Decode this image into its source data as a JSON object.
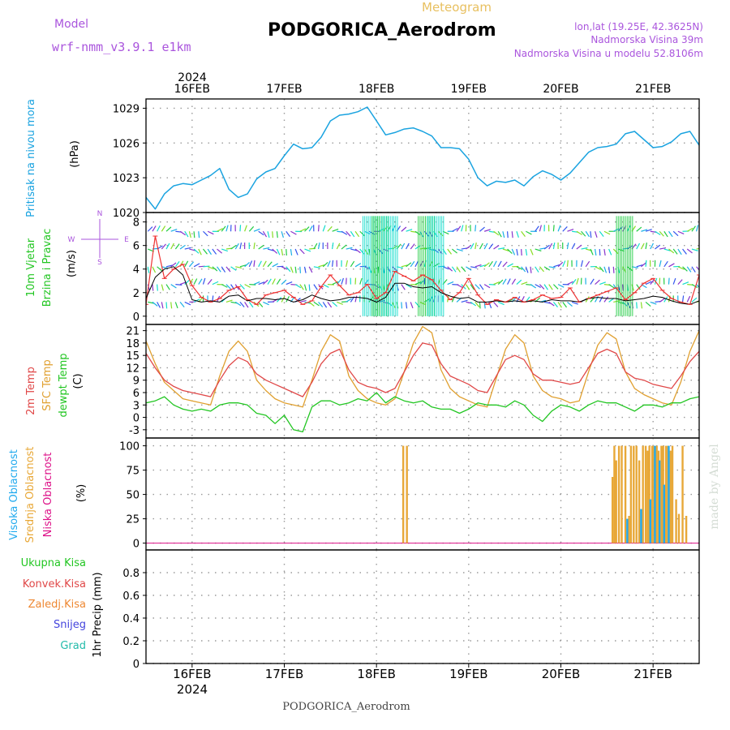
{
  "header": {
    "meteogram_label": "Meteogram",
    "model_label": "Model",
    "model_value": "wrf-nmm_v3.9.1  e1km",
    "station": "PODGORICA_Aerodrom",
    "lonlat": "lon,lat (19.25E, 42.3625N)",
    "elevation": "Nadmorska Visina 39m",
    "model_elevation": "Nadmorska Visina u modelu 52.8106m",
    "footer_station": "PODGORICA_Aerodrom",
    "watermark": "made by Angel"
  },
  "colors": {
    "pressure": "#1aa3e0",
    "temp2m": "#e04848",
    "sfc": "#e0a030",
    "dew": "#22c622",
    "cloud_high": "#22aaee",
    "cloud_mid": "#e8a838",
    "cloud_low": "#dd1188",
    "model": "#aa55dd",
    "meteogram_title": "#e8c060"
  },
  "time_axis": {
    "top_year": "2024",
    "bottom_year": "2024",
    "days": [
      {
        "label": "16FEB",
        "t": 0.5
      },
      {
        "label": "17FEB",
        "t": 1.5
      },
      {
        "label": "18FEB",
        "t": 2.5
      },
      {
        "label": "19FEB",
        "t": 3.5
      },
      {
        "label": "20FEB",
        "t": 4.5
      },
      {
        "label": "21FEB",
        "t": 5.5
      }
    ],
    "t_range": [
      0,
      6
    ]
  },
  "chart_data": [
    {
      "id": "pressure",
      "type": "line",
      "labels": [
        "Pritisak na nivou mora"
      ],
      "ylabel": "(hPa)",
      "y_ticks": [
        1020,
        1023,
        1026,
        1029
      ],
      "ylim": [
        1020,
        1029.8
      ],
      "series": [
        {
          "name": "Pritisak na nivou mora",
          "x": [
            0.0,
            0.1,
            0.2,
            0.3,
            0.4,
            0.5,
            0.6,
            0.7,
            0.8,
            0.9,
            1.0,
            1.1,
            1.2,
            1.3,
            1.4,
            1.5,
            1.6,
            1.7,
            1.8,
            1.9,
            2.0,
            2.1,
            2.2,
            2.3,
            2.4,
            2.5,
            2.6,
            2.7,
            2.8,
            2.9,
            3.0,
            3.1,
            3.2,
            3.3,
            3.4,
            3.5,
            3.6,
            3.7,
            3.8,
            3.9,
            4.0,
            4.1,
            4.2,
            4.3,
            4.4,
            4.5,
            4.6,
            4.7,
            4.8,
            4.9,
            5.0,
            5.1,
            5.2,
            5.3,
            5.4,
            5.5,
            5.6,
            5.7,
            5.8,
            5.9,
            6.0
          ],
          "values": [
            1021.3,
            1020.3,
            1021.6,
            1022.3,
            1022.5,
            1022.4,
            1022.8,
            1023.2,
            1023.8,
            1022.0,
            1021.3,
            1021.6,
            1022.9,
            1023.5,
            1023.8,
            1024.9,
            1025.9,
            1025.5,
            1025.6,
            1026.5,
            1027.9,
            1028.4,
            1028.5,
            1028.7,
            1029.1,
            1027.9,
            1026.7,
            1026.9,
            1027.2,
            1027.3,
            1027.0,
            1026.6,
            1025.6,
            1025.6,
            1025.5,
            1024.6,
            1023.0,
            1022.3,
            1022.7,
            1022.6,
            1022.8,
            1022.3,
            1023.1,
            1023.6,
            1023.3,
            1022.8,
            1023.4,
            1024.3,
            1025.2,
            1025.6,
            1025.7,
            1025.9,
            1026.8,
            1027.0,
            1026.3,
            1025.6,
            1025.7,
            1026.1,
            1026.8,
            1027.0,
            1025.8
          ]
        }
      ]
    },
    {
      "id": "wind",
      "type": "line",
      "labels": [
        "10m Vjetar",
        "Brzina i Pravac"
      ],
      "ylabel": "(m/s)",
      "y_ticks": [
        0,
        2,
        4,
        6,
        8
      ],
      "ylim": [
        -0.7,
        8.8
      ],
      "compass": {
        "n": "N",
        "s": "S",
        "w": "W",
        "e": "E"
      },
      "series": [
        {
          "name": "Brzina",
          "x": [
            0.0,
            0.1,
            0.2,
            0.3,
            0.4,
            0.5,
            0.6,
            0.7,
            0.8,
            0.9,
            1.0,
            1.1,
            1.2,
            1.3,
            1.4,
            1.5,
            1.6,
            1.7,
            1.8,
            1.9,
            2.0,
            2.1,
            2.2,
            2.3,
            2.4,
            2.5,
            2.6,
            2.7,
            2.8,
            2.9,
            3.0,
            3.1,
            3.2,
            3.3,
            3.4,
            3.5,
            3.6,
            3.7,
            3.8,
            3.9,
            4.0,
            4.1,
            4.2,
            4.3,
            4.4,
            4.5,
            4.6,
            4.7,
            4.8,
            4.9,
            5.0,
            5.1,
            5.2,
            5.3,
            5.4,
            5.5,
            5.6,
            5.7,
            5.8,
            5.9,
            6.0
          ],
          "values": [
            1.0,
            6.8,
            3.2,
            4.0,
            4.4,
            2.6,
            1.6,
            1.2,
            1.5,
            2.2,
            2.5,
            1.4,
            1.0,
            1.8,
            2.0,
            2.2,
            1.6,
            1.0,
            1.3,
            2.5,
            3.5,
            2.6,
            1.8,
            2.0,
            2.7,
            1.5,
            2.0,
            3.8,
            3.4,
            3.0,
            3.5,
            3.1,
            2.2,
            1.4,
            2.0,
            3.2,
            1.8,
            1.0,
            1.4,
            1.2,
            1.6,
            1.2,
            1.4,
            1.8,
            1.5,
            1.6,
            2.4,
            1.2,
            1.5,
            1.8,
            2.1,
            2.4,
            1.4,
            2.0,
            2.8,
            3.2,
            2.2,
            1.5,
            1.2,
            1.0,
            3.5
          ]
        },
        {
          "name": "Brzina 2",
          "x": [
            0.0,
            0.1,
            0.2,
            0.3,
            0.4,
            0.5,
            0.6,
            0.7,
            0.8,
            0.9,
            1.0,
            1.1,
            1.2,
            1.3,
            1.4,
            1.5,
            1.6,
            1.7,
            1.8,
            1.9,
            2.0,
            2.1,
            2.2,
            2.3,
            2.4,
            2.5,
            2.6,
            2.7,
            2.8,
            2.9,
            3.0,
            3.1,
            3.2,
            3.3,
            3.4,
            3.5,
            3.6,
            3.7,
            3.8,
            3.9,
            4.0,
            4.1,
            4.2,
            4.3,
            4.4,
            4.5,
            4.6,
            4.7,
            4.8,
            4.9,
            5.0,
            5.1,
            5.2,
            5.3,
            5.4,
            5.5,
            5.6,
            5.7,
            5.8,
            5.9,
            6.0
          ],
          "values": [
            1.5,
            3.3,
            4.0,
            4.2,
            3.5,
            1.4,
            1.2,
            1.3,
            1.2,
            1.7,
            1.8,
            1.3,
            1.5,
            1.5,
            1.4,
            1.5,
            1.2,
            1.4,
            1.8,
            1.5,
            1.3,
            1.4,
            1.6,
            1.6,
            1.5,
            1.2,
            1.6,
            2.8,
            2.8,
            2.5,
            2.4,
            2.5,
            2.0,
            1.7,
            1.5,
            1.6,
            1.2,
            1.2,
            1.3,
            1.2,
            1.3,
            1.2,
            1.3,
            1.2,
            1.4,
            1.3,
            1.3,
            1.2,
            1.5,
            1.6,
            1.5,
            1.5,
            1.3,
            1.4,
            1.5,
            1.7,
            1.6,
            1.3,
            1.1,
            1.0,
            1.3
          ]
        }
      ]
    },
    {
      "id": "temperature",
      "type": "line",
      "labels": [
        "2m Temp",
        "SFC Temp",
        "dewpt Temp"
      ],
      "ylabel": "(C)",
      "y_ticks": [
        -3,
        0,
        3,
        6,
        9,
        12,
        15,
        18,
        21
      ],
      "ylim": [
        -5,
        22.5
      ],
      "series": [
        {
          "name": "2m Temp",
          "x": [
            0.0,
            0.1,
            0.2,
            0.3,
            0.4,
            0.5,
            0.6,
            0.7,
            0.8,
            0.9,
            1.0,
            1.1,
            1.2,
            1.3,
            1.4,
            1.5,
            1.6,
            1.7,
            1.8,
            1.9,
            2.0,
            2.1,
            2.2,
            2.3,
            2.4,
            2.5,
            2.6,
            2.7,
            2.8,
            2.9,
            3.0,
            3.1,
            3.2,
            3.3,
            3.4,
            3.5,
            3.6,
            3.7,
            3.8,
            3.9,
            4.0,
            4.1,
            4.2,
            4.3,
            4.4,
            4.5,
            4.6,
            4.7,
            4.8,
            4.9,
            5.0,
            5.1,
            5.2,
            5.3,
            5.4,
            5.5,
            5.6,
            5.7,
            5.8,
            5.9,
            6.0
          ],
          "values": [
            15.5,
            12.0,
            9.0,
            7.5,
            6.5,
            6.0,
            5.5,
            5.0,
            9.0,
            12.5,
            14.5,
            13.5,
            10.5,
            9.0,
            8.0,
            7.0,
            6.0,
            5.0,
            8.5,
            13.0,
            15.5,
            16.5,
            11.5,
            8.5,
            7.5,
            7.0,
            6.0,
            7.0,
            11.0,
            15.0,
            18.0,
            17.5,
            13.0,
            10.0,
            9.0,
            8.0,
            6.5,
            6.0,
            10.0,
            14.0,
            15.0,
            14.0,
            10.5,
            9.0,
            9.0,
            8.5,
            8.0,
            8.5,
            12.0,
            15.5,
            16.5,
            15.5,
            11.0,
            9.5,
            9.0,
            8.0,
            7.5,
            7.0,
            10.0,
            13.5,
            16.0
          ]
        },
        {
          "name": "SFC Temp",
          "x": [
            0.0,
            0.1,
            0.2,
            0.3,
            0.4,
            0.5,
            0.6,
            0.7,
            0.8,
            0.9,
            1.0,
            1.1,
            1.2,
            1.3,
            1.4,
            1.5,
            1.6,
            1.7,
            1.8,
            1.9,
            2.0,
            2.1,
            2.2,
            2.3,
            2.4,
            2.5,
            2.6,
            2.7,
            2.8,
            2.9,
            3.0,
            3.1,
            3.2,
            3.3,
            3.4,
            3.5,
            3.6,
            3.7,
            3.8,
            3.9,
            4.0,
            4.1,
            4.2,
            4.3,
            4.4,
            4.5,
            4.6,
            4.7,
            4.8,
            4.9,
            5.0,
            5.1,
            5.2,
            5.3,
            5.4,
            5.5,
            5.6,
            5.7,
            5.8,
            5.9,
            6.0
          ],
          "values": [
            18.5,
            13.0,
            8.5,
            6.5,
            4.5,
            4.0,
            3.5,
            3.0,
            10.0,
            16.0,
            18.5,
            16.0,
            9.0,
            6.5,
            4.5,
            3.5,
            3.0,
            2.5,
            9.0,
            16.0,
            20.0,
            18.5,
            10.0,
            6.5,
            4.5,
            3.5,
            3.0,
            4.5,
            11.0,
            18.0,
            22.0,
            20.5,
            11.5,
            7.0,
            5.0,
            4.0,
            3.0,
            2.5,
            9.5,
            16.5,
            20.0,
            18.0,
            10.0,
            6.5,
            5.0,
            4.5,
            3.5,
            4.0,
            11.0,
            17.5,
            20.5,
            19.0,
            11.0,
            7.0,
            5.5,
            4.5,
            3.5,
            3.0,
            8.5,
            16.0,
            21.0
          ]
        },
        {
          "name": "dewpt Temp",
          "x": [
            0.0,
            0.1,
            0.2,
            0.3,
            0.4,
            0.5,
            0.6,
            0.7,
            0.8,
            0.9,
            1.0,
            1.1,
            1.2,
            1.3,
            1.4,
            1.5,
            1.6,
            1.7,
            1.8,
            1.9,
            2.0,
            2.1,
            2.2,
            2.3,
            2.4,
            2.5,
            2.6,
            2.7,
            2.8,
            2.9,
            3.0,
            3.1,
            3.2,
            3.3,
            3.4,
            3.5,
            3.6,
            3.7,
            3.8,
            3.9,
            4.0,
            4.1,
            4.2,
            4.3,
            4.4,
            4.5,
            4.6,
            4.7,
            4.8,
            4.9,
            5.0,
            5.1,
            5.2,
            5.3,
            5.4,
            5.5,
            5.6,
            5.7,
            5.8,
            5.9,
            6.0
          ],
          "values": [
            3.5,
            4.0,
            5.0,
            3.0,
            2.0,
            1.5,
            2.0,
            1.5,
            3.0,
            3.5,
            3.5,
            3.0,
            1.0,
            0.5,
            -1.5,
            0.5,
            -3.0,
            -3.5,
            2.5,
            4.0,
            4.0,
            3.0,
            3.5,
            4.5,
            4.0,
            6.0,
            3.5,
            5.0,
            4.0,
            3.5,
            4.0,
            2.5,
            2.0,
            2.0,
            1.0,
            2.0,
            3.5,
            3.0,
            3.0,
            2.5,
            4.0,
            3.0,
            0.5,
            -1.0,
            1.5,
            3.0,
            2.5,
            1.5,
            3.0,
            4.0,
            3.5,
            3.5,
            2.5,
            1.5,
            3.0,
            3.0,
            2.5,
            3.5,
            3.5,
            4.5,
            5.0
          ]
        }
      ]
    },
    {
      "id": "clouds",
      "type": "bar",
      "labels": [
        "Visoka Oblacnost",
        "Srednja Oblacnost",
        "Niska Oblacnost"
      ],
      "ylabel": "(%)",
      "y_ticks": [
        0,
        25,
        50,
        75,
        100
      ],
      "ylim": [
        -7,
        108
      ],
      "series": [
        {
          "name": "Visoka Oblacnost",
          "x": [
            5.22,
            5.37,
            5.47,
            5.52,
            5.57,
            5.62,
            5.67
          ],
          "values": [
            25,
            35,
            45,
            100,
            85,
            60,
            100
          ]
        },
        {
          "name": "Srednja Oblacnost",
          "x": [
            2.79,
            2.83,
            5.06,
            5.08,
            5.1,
            5.13,
            5.16,
            5.2,
            5.24,
            5.26,
            5.29,
            5.32,
            5.35,
            5.39,
            5.42,
            5.44,
            5.46,
            5.49,
            5.51,
            5.54,
            5.56,
            5.59,
            5.61,
            5.64,
            5.66,
            5.69,
            5.71,
            5.75,
            5.78,
            5.82,
            5.86
          ],
          "values": [
            100,
            100,
            68,
            100,
            85,
            100,
            100,
            100,
            28,
            100,
            100,
            100,
            85,
            100,
            100,
            95,
            100,
            100,
            100,
            100,
            95,
            100,
            100,
            100,
            100,
            95,
            100,
            45,
            30,
            100,
            28
          ]
        },
        {
          "name": "Niska Oblacnost",
          "x": [],
          "values": []
        }
      ]
    },
    {
      "id": "precip",
      "type": "bar",
      "labels": [
        "Ukupna Kisa",
        "Konvek.Kisa",
        "Zaledj.Kisa",
        "Snijeg",
        "Grad"
      ],
      "ylabel": "1hr Precip (mm)",
      "y_ticks": [
        0,
        0.2,
        0.4,
        0.6,
        0.8
      ],
      "y_tick_labels": [
        "0",
        "0.2",
        "0.4",
        "0.6",
        "0.8"
      ],
      "ylim": [
        0,
        1.0
      ],
      "series": []
    }
  ]
}
